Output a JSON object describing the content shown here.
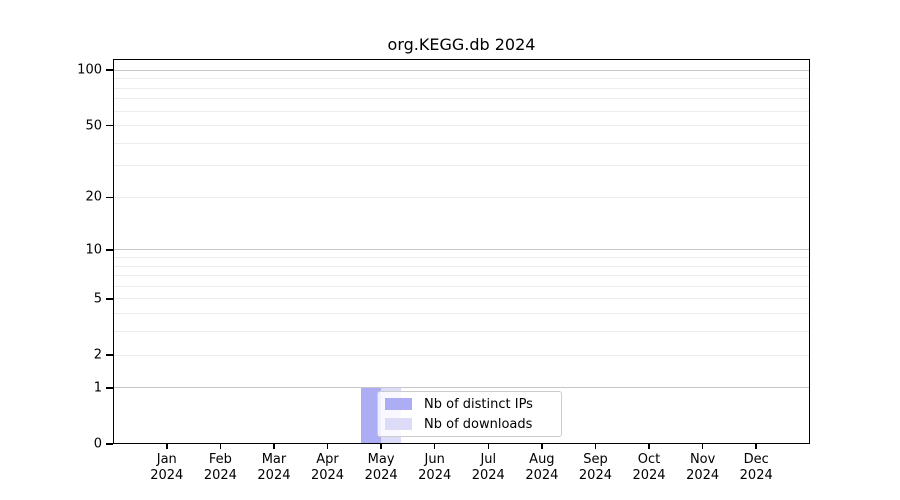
{
  "chart_data": {
    "type": "bar",
    "title": "org.KEGG.db 2024",
    "x_year": "2024",
    "categories": [
      "Jan",
      "Feb",
      "Mar",
      "Apr",
      "May",
      "Jun",
      "Jul",
      "Aug",
      "Sep",
      "Oct",
      "Nov",
      "Dec"
    ],
    "series": [
      {
        "name": "Nb of distinct IPs",
        "color": "#adadf6",
        "values": [
          0,
          0,
          0,
          0,
          1,
          0,
          0,
          0,
          0,
          0,
          0,
          0
        ]
      },
      {
        "name": "Nb of downloads",
        "color": "#dcdcf8",
        "values": [
          0,
          0,
          0,
          0,
          1,
          0,
          0,
          0,
          0,
          0,
          0,
          0
        ]
      }
    ],
    "yscale": "log1p",
    "ylim": [
      0,
      115
    ],
    "yticks": [
      0,
      1,
      2,
      5,
      10,
      20,
      50,
      100
    ],
    "minor_gridlines": [
      3,
      4,
      6,
      7,
      8,
      9,
      30,
      40,
      60,
      70,
      80,
      90
    ],
    "emphasized_gridlines": [
      1,
      10,
      100
    ],
    "grid": true,
    "legend_position": "lower center"
  },
  "colors": {
    "background": "#ffffff",
    "spine": "#000000",
    "grid_major": "#c6c6c6",
    "grid_minor": "#ececec",
    "legend_border": "#cccccc"
  }
}
